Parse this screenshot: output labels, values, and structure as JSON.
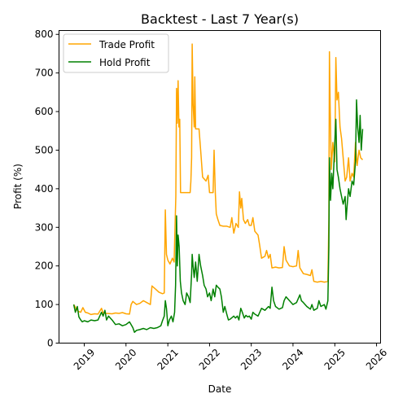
{
  "chart_data": {
    "type": "line",
    "title": "Backtest - Last 7 Year(s)",
    "xlabel": "Date",
    "ylabel": "Profit (%)",
    "xlim": [
      "2018-05-25",
      "2026-02-05"
    ],
    "ylim": [
      0,
      810
    ],
    "x_ticks": [
      "2019",
      "2020",
      "2021",
      "2022",
      "2023",
      "2024",
      "2025",
      "2026"
    ],
    "y_ticks": [
      0,
      100,
      200,
      300,
      400,
      500,
      600,
      700,
      800
    ],
    "grid": false,
    "legend_position": "upper-left",
    "series": [
      {
        "name": "Trade Profit",
        "color": "#FFA500",
        "points": [
          [
            "2018-10-01",
            100
          ],
          [
            "2018-10-20",
            90
          ],
          [
            "2018-11-10",
            82
          ],
          [
            "2018-12-01",
            80
          ],
          [
            "2018-12-20",
            92
          ],
          [
            "2019-01-10",
            80
          ],
          [
            "2019-02-01",
            78
          ],
          [
            "2019-03-01",
            74
          ],
          [
            "2019-04-01",
            76
          ],
          [
            "2019-05-01",
            75
          ],
          [
            "2019-06-01",
            90
          ],
          [
            "2019-06-15",
            78
          ],
          [
            "2019-07-15",
            77
          ],
          [
            "2019-09-01",
            76
          ],
          [
            "2019-10-01",
            78
          ],
          [
            "2019-11-01",
            77
          ],
          [
            "2019-12-01",
            79
          ],
          [
            "2020-01-01",
            76
          ],
          [
            "2020-02-01",
            75
          ],
          [
            "2020-02-15",
            100
          ],
          [
            "2020-03-01",
            108
          ],
          [
            "2020-04-01",
            100
          ],
          [
            "2020-05-01",
            103
          ],
          [
            "2020-06-01",
            110
          ],
          [
            "2020-07-01",
            105
          ],
          [
            "2020-08-01",
            100
          ],
          [
            "2020-08-15",
            148
          ],
          [
            "2020-09-15",
            140
          ],
          [
            "2020-10-15",
            132
          ],
          [
            "2020-11-15",
            128
          ],
          [
            "2020-12-01",
            130
          ],
          [
            "2020-12-10",
            345
          ],
          [
            "2020-12-20",
            230
          ],
          [
            "2021-01-01",
            215
          ],
          [
            "2021-01-20",
            205
          ],
          [
            "2021-02-10",
            220
          ],
          [
            "2021-02-25",
            210
          ],
          [
            "2021-03-05",
            300
          ],
          [
            "2021-03-12",
            380
          ],
          [
            "2021-03-18",
            660
          ],
          [
            "2021-03-25",
            570
          ],
          [
            "2021-04-01",
            680
          ],
          [
            "2021-04-08",
            560
          ],
          [
            "2021-04-15",
            580
          ],
          [
            "2021-04-22",
            390
          ],
          [
            "2021-05-15",
            390
          ],
          [
            "2021-06-15",
            390
          ],
          [
            "2021-07-15",
            390
          ],
          [
            "2021-07-22",
            420
          ],
          [
            "2021-07-28",
            480
          ],
          [
            "2021-08-02",
            775
          ],
          [
            "2021-08-10",
            620
          ],
          [
            "2021-08-20",
            560
          ],
          [
            "2021-08-25",
            690
          ],
          [
            "2021-09-01",
            555
          ],
          [
            "2021-10-01",
            555
          ],
          [
            "2021-10-15",
            500
          ],
          [
            "2021-11-01",
            430
          ],
          [
            "2021-12-01",
            420
          ],
          [
            "2021-12-20",
            435
          ],
          [
            "2022-01-01",
            390
          ],
          [
            "2022-02-01",
            390
          ],
          [
            "2022-02-10",
            500
          ],
          [
            "2022-02-20",
            390
          ],
          [
            "2022-03-01",
            335
          ],
          [
            "2022-03-15",
            320
          ],
          [
            "2022-04-01",
            305
          ],
          [
            "2022-05-01",
            303
          ],
          [
            "2022-06-01",
            303
          ],
          [
            "2022-07-01",
            300
          ],
          [
            "2022-07-15",
            325
          ],
          [
            "2022-08-01",
            285
          ],
          [
            "2022-08-20",
            310
          ],
          [
            "2022-09-10",
            300
          ],
          [
            "2022-09-20",
            392
          ],
          [
            "2022-10-01",
            350
          ],
          [
            "2022-10-10",
            375
          ],
          [
            "2022-10-25",
            320
          ],
          [
            "2022-11-10",
            310
          ],
          [
            "2022-12-01",
            320
          ],
          [
            "2022-12-15",
            305
          ],
          [
            "2023-01-01",
            305
          ],
          [
            "2023-01-15",
            325
          ],
          [
            "2023-02-01",
            290
          ],
          [
            "2023-03-01",
            280
          ],
          [
            "2023-03-15",
            255
          ],
          [
            "2023-04-01",
            220
          ],
          [
            "2023-05-01",
            225
          ],
          [
            "2023-05-15",
            240
          ],
          [
            "2023-06-01",
            220
          ],
          [
            "2023-06-15",
            230
          ],
          [
            "2023-07-01",
            195
          ],
          [
            "2023-08-01",
            197
          ],
          [
            "2023-09-01",
            195
          ],
          [
            "2023-10-01",
            196
          ],
          [
            "2023-10-15",
            250
          ],
          [
            "2023-11-01",
            215
          ],
          [
            "2023-12-01",
            200
          ],
          [
            "2024-01-01",
            198
          ],
          [
            "2024-02-01",
            200
          ],
          [
            "2024-02-15",
            240
          ],
          [
            "2024-03-01",
            195
          ],
          [
            "2024-04-01",
            180
          ],
          [
            "2024-05-01",
            178
          ],
          [
            "2024-06-01",
            175
          ],
          [
            "2024-06-15",
            190
          ],
          [
            "2024-07-01",
            160
          ],
          [
            "2024-08-01",
            158
          ],
          [
            "2024-09-01",
            160
          ],
          [
            "2024-10-01",
            158
          ],
          [
            "2024-11-01",
            160
          ],
          [
            "2024-11-10",
            320
          ],
          [
            "2024-11-15",
            755
          ],
          [
            "2024-11-22",
            600
          ],
          [
            "2024-12-01",
            450
          ],
          [
            "2024-12-15",
            520
          ],
          [
            "2025-01-01",
            470
          ],
          [
            "2025-01-10",
            740
          ],
          [
            "2025-01-20",
            630
          ],
          [
            "2025-02-01",
            650
          ],
          [
            "2025-02-15",
            560
          ],
          [
            "2025-03-01",
            530
          ],
          [
            "2025-04-01",
            420
          ],
          [
            "2025-04-15",
            430
          ],
          [
            "2025-05-01",
            480
          ],
          [
            "2025-05-15",
            420
          ],
          [
            "2025-06-01",
            440
          ],
          [
            "2025-06-15",
            430
          ],
          [
            "2025-07-01",
            520
          ],
          [
            "2025-07-15",
            460
          ],
          [
            "2025-08-01",
            500
          ],
          [
            "2025-08-15",
            480
          ],
          [
            "2025-09-01",
            475
          ]
        ]
      },
      {
        "name": "Hold Profit",
        "color": "#008000",
        "points": [
          [
            "2018-10-01",
            100
          ],
          [
            "2018-10-15",
            80
          ],
          [
            "2018-11-01",
            95
          ],
          [
            "2018-11-15",
            68
          ],
          [
            "2018-12-01",
            60
          ],
          [
            "2018-12-15",
            55
          ],
          [
            "2019-01-01",
            58
          ],
          [
            "2019-02-01",
            55
          ],
          [
            "2019-03-01",
            60
          ],
          [
            "2019-04-01",
            58
          ],
          [
            "2019-05-01",
            60
          ],
          [
            "2019-06-01",
            80
          ],
          [
            "2019-06-15",
            70
          ],
          [
            "2019-07-01",
            85
          ],
          [
            "2019-07-15",
            60
          ],
          [
            "2019-08-01",
            70
          ],
          [
            "2019-09-01",
            60
          ],
          [
            "2019-10-01",
            48
          ],
          [
            "2019-11-01",
            50
          ],
          [
            "2019-12-01",
            45
          ],
          [
            "2020-01-01",
            48
          ],
          [
            "2020-02-01",
            55
          ],
          [
            "2020-03-01",
            40
          ],
          [
            "2020-03-15",
            28
          ],
          [
            "2020-04-01",
            33
          ],
          [
            "2020-05-01",
            35
          ],
          [
            "2020-06-01",
            38
          ],
          [
            "2020-07-01",
            35
          ],
          [
            "2020-08-01",
            40
          ],
          [
            "2020-09-01",
            38
          ],
          [
            "2020-10-01",
            40
          ],
          [
            "2020-11-01",
            45
          ],
          [
            "2020-11-15",
            58
          ],
          [
            "2020-12-01",
            70
          ],
          [
            "2020-12-10",
            110
          ],
          [
            "2020-12-20",
            90
          ],
          [
            "2021-01-01",
            45
          ],
          [
            "2021-01-15",
            60
          ],
          [
            "2021-02-01",
            70
          ],
          [
            "2021-02-15",
            55
          ],
          [
            "2021-03-01",
            80
          ],
          [
            "2021-03-10",
            150
          ],
          [
            "2021-03-18",
            330
          ],
          [
            "2021-03-25",
            200
          ],
          [
            "2021-04-01",
            280
          ],
          [
            "2021-04-10",
            250
          ],
          [
            "2021-04-20",
            160
          ],
          [
            "2021-05-01",
            130
          ],
          [
            "2021-05-15",
            110
          ],
          [
            "2021-06-01",
            100
          ],
          [
            "2021-06-15",
            130
          ],
          [
            "2021-07-01",
            120
          ],
          [
            "2021-07-15",
            105
          ],
          [
            "2021-07-28",
            180
          ],
          [
            "2021-08-02",
            230
          ],
          [
            "2021-08-10",
            200
          ],
          [
            "2021-08-20",
            170
          ],
          [
            "2021-09-01",
            210
          ],
          [
            "2021-09-15",
            160
          ],
          [
            "2021-10-01",
            230
          ],
          [
            "2021-10-15",
            200
          ],
          [
            "2021-11-01",
            175
          ],
          [
            "2021-11-15",
            150
          ],
          [
            "2021-12-01",
            140
          ],
          [
            "2021-12-15",
            120
          ],
          [
            "2022-01-01",
            130
          ],
          [
            "2022-01-15",
            110
          ],
          [
            "2022-02-01",
            140
          ],
          [
            "2022-02-15",
            120
          ],
          [
            "2022-03-01",
            150
          ],
          [
            "2022-03-15",
            145
          ],
          [
            "2022-04-01",
            140
          ],
          [
            "2022-04-15",
            120
          ],
          [
            "2022-05-01",
            80
          ],
          [
            "2022-05-15",
            95
          ],
          [
            "2022-06-01",
            75
          ],
          [
            "2022-06-15",
            60
          ],
          [
            "2022-07-01",
            62
          ],
          [
            "2022-08-01",
            70
          ],
          [
            "2022-08-15",
            65
          ],
          [
            "2022-09-01",
            70
          ],
          [
            "2022-09-15",
            60
          ],
          [
            "2022-10-01",
            90
          ],
          [
            "2022-10-15",
            80
          ],
          [
            "2022-11-01",
            65
          ],
          [
            "2022-11-15",
            72
          ],
          [
            "2022-12-01",
            68
          ],
          [
            "2022-12-15",
            70
          ],
          [
            "2023-01-01",
            62
          ],
          [
            "2023-01-15",
            80
          ],
          [
            "2023-02-01",
            75
          ],
          [
            "2023-03-01",
            70
          ],
          [
            "2023-04-01",
            90
          ],
          [
            "2023-05-01",
            85
          ],
          [
            "2023-06-01",
            95
          ],
          [
            "2023-06-15",
            90
          ],
          [
            "2023-07-01",
            145
          ],
          [
            "2023-07-15",
            110
          ],
          [
            "2023-08-01",
            95
          ],
          [
            "2023-09-01",
            88
          ],
          [
            "2023-10-01",
            92
          ],
          [
            "2023-10-15",
            110
          ],
          [
            "2023-11-01",
            120
          ],
          [
            "2023-12-01",
            110
          ],
          [
            "2024-01-01",
            100
          ],
          [
            "2024-02-01",
            105
          ],
          [
            "2024-03-01",
            125
          ],
          [
            "2024-03-15",
            110
          ],
          [
            "2024-04-01",
            105
          ],
          [
            "2024-05-01",
            95
          ],
          [
            "2024-06-01",
            88
          ],
          [
            "2024-06-15",
            100
          ],
          [
            "2024-07-01",
            85
          ],
          [
            "2024-08-01",
            90
          ],
          [
            "2024-08-15",
            110
          ],
          [
            "2024-09-01",
            95
          ],
          [
            "2024-10-01",
            100
          ],
          [
            "2024-10-15",
            88
          ],
          [
            "2024-11-01",
            110
          ],
          [
            "2024-11-10",
            250
          ],
          [
            "2024-11-15",
            480
          ],
          [
            "2024-11-25",
            370
          ],
          [
            "2024-12-05",
            440
          ],
          [
            "2024-12-15",
            400
          ],
          [
            "2025-01-01",
            520
          ],
          [
            "2025-01-10",
            580
          ],
          [
            "2025-01-20",
            450
          ],
          [
            "2025-02-01",
            430
          ],
          [
            "2025-02-15",
            400
          ],
          [
            "2025-03-01",
            380
          ],
          [
            "2025-03-15",
            360
          ],
          [
            "2025-04-01",
            380
          ],
          [
            "2025-04-10",
            320
          ],
          [
            "2025-04-20",
            360
          ],
          [
            "2025-05-01",
            400
          ],
          [
            "2025-05-15",
            380
          ],
          [
            "2025-06-01",
            420
          ],
          [
            "2025-06-15",
            410
          ],
          [
            "2025-07-01",
            470
          ],
          [
            "2025-07-10",
            630
          ],
          [
            "2025-07-20",
            560
          ],
          [
            "2025-08-01",
            520
          ],
          [
            "2025-08-10",
            590
          ],
          [
            "2025-08-20",
            500
          ],
          [
            "2025-09-01",
            555
          ]
        ]
      }
    ]
  }
}
